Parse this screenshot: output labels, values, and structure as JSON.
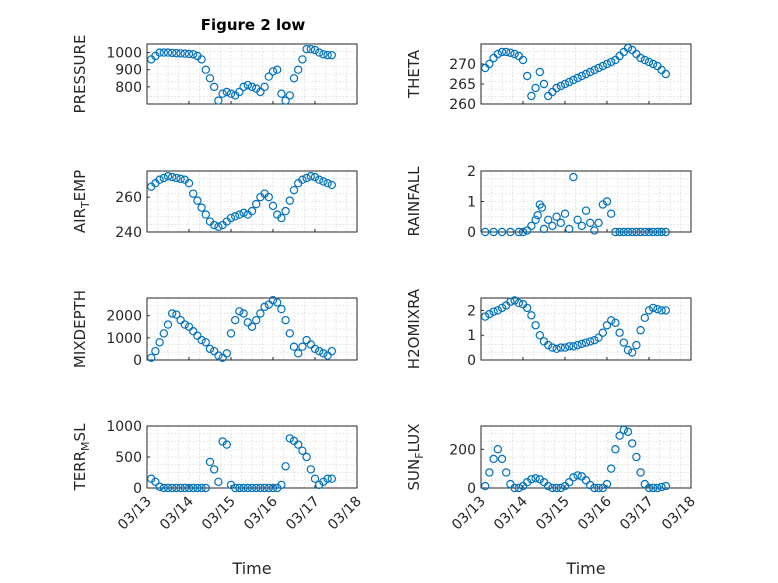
{
  "title": "Figure 2 low",
  "colors": {
    "marker": "#0072bd",
    "axis": "#262626",
    "grid": "#d9d9d9"
  },
  "chart_data": [
    {
      "type": "scatter",
      "ylabel": "PRESSURE",
      "ylim": [
        700,
        1050
      ],
      "yticks": [
        800,
        900,
        1000
      ],
      "x": [
        0.1,
        0.2,
        0.3,
        0.4,
        0.5,
        0.6,
        0.7,
        0.8,
        0.9,
        1.0,
        1.1,
        1.2,
        1.3,
        1.4,
        1.5,
        1.6,
        1.7,
        1.8,
        1.9,
        2.0,
        2.1,
        2.2,
        2.3,
        2.4,
        2.5,
        2.6,
        2.7,
        2.8,
        2.9,
        3.0,
        3.1,
        3.2,
        3.3,
        3.4,
        3.5,
        3.6,
        3.7,
        3.8,
        3.9,
        4.0,
        4.1,
        4.2,
        4.3,
        4.4
      ],
      "y": [
        960,
        980,
        1000,
        1000,
        1000,
        998,
        996,
        995,
        994,
        992,
        990,
        980,
        960,
        900,
        850,
        800,
        720,
        760,
        770,
        760,
        750,
        770,
        800,
        810,
        800,
        790,
        770,
        800,
        860,
        890,
        900,
        760,
        720,
        750,
        850,
        900,
        960,
        1020,
        1020,
        1015,
        1000,
        990,
        985,
        985
      ]
    },
    {
      "type": "scatter",
      "ylabel": "THETA",
      "ylim": [
        260,
        275
      ],
      "yticks": [
        260,
        265,
        270
      ],
      "x": [
        0.1,
        0.2,
        0.3,
        0.4,
        0.5,
        0.6,
        0.7,
        0.8,
        0.9,
        1.0,
        1.1,
        1.2,
        1.3,
        1.4,
        1.5,
        1.6,
        1.7,
        1.8,
        1.9,
        2.0,
        2.1,
        2.2,
        2.3,
        2.4,
        2.5,
        2.6,
        2.7,
        2.8,
        2.9,
        3.0,
        3.1,
        3.2,
        3.3,
        3.4,
        3.5,
        3.6,
        3.7,
        3.8,
        3.9,
        4.0,
        4.1,
        4.2,
        4.3,
        4.4
      ],
      "y": [
        269,
        270,
        271.5,
        272.5,
        273,
        273,
        272.8,
        272.5,
        272,
        271,
        267,
        262,
        264,
        268,
        265,
        262,
        263,
        264,
        264.5,
        265,
        265.5,
        266,
        266.5,
        267,
        267.5,
        268,
        268.5,
        269,
        269.5,
        270,
        270.5,
        271,
        272,
        273,
        274,
        273.5,
        272.5,
        271.5,
        271,
        270.5,
        270,
        269.5,
        268.5,
        267.5
      ]
    },
    {
      "type": "scatter",
      "ylabel": "AIR_TEMP",
      "ylim": [
        240,
        275
      ],
      "yticks": [
        240,
        260
      ],
      "x": [
        0.1,
        0.2,
        0.3,
        0.4,
        0.5,
        0.6,
        0.7,
        0.8,
        0.9,
        1.0,
        1.1,
        1.2,
        1.3,
        1.4,
        1.5,
        1.6,
        1.7,
        1.8,
        1.9,
        2.0,
        2.1,
        2.2,
        2.3,
        2.4,
        2.5,
        2.6,
        2.7,
        2.8,
        2.9,
        3.0,
        3.1,
        3.2,
        3.3,
        3.4,
        3.5,
        3.6,
        3.7,
        3.8,
        3.9,
        4.0,
        4.1,
        4.2,
        4.3,
        4.4
      ],
      "y": [
        266,
        268,
        270,
        271,
        272,
        271.5,
        271,
        270.5,
        270,
        268,
        262,
        258,
        254,
        250,
        246,
        244,
        243,
        244,
        246,
        248,
        249,
        250,
        251,
        250,
        252,
        256,
        260,
        262,
        260,
        255,
        250,
        248,
        252,
        258,
        264,
        268,
        270,
        271,
        272,
        271.5,
        270,
        269,
        268,
        267
      ]
    },
    {
      "type": "scatter",
      "ylabel": "RAINFALL",
      "ylim": [
        0,
        2
      ],
      "yticks": [
        0,
        1,
        2
      ],
      "x": [
        0.1,
        0.3,
        0.5,
        0.7,
        0.9,
        1.0,
        1.1,
        1.2,
        1.3,
        1.35,
        1.4,
        1.45,
        1.5,
        1.6,
        1.7,
        1.8,
        1.9,
        2.0,
        2.1,
        2.2,
        2.3,
        2.4,
        2.5,
        2.6,
        2.7,
        2.8,
        2.9,
        3.0,
        3.1,
        3.2,
        3.3,
        3.4,
        3.5,
        3.6,
        3.7,
        3.8,
        3.9,
        4.0,
        4.1,
        4.2,
        4.3,
        4.4
      ],
      "y": [
        0,
        0,
        0,
        0,
        0,
        0,
        0.05,
        0.2,
        0.4,
        0.55,
        0.9,
        0.8,
        0.1,
        0.4,
        0.2,
        0.5,
        0.3,
        0.6,
        0.1,
        1.8,
        0.4,
        0.2,
        0.7,
        0.3,
        0.05,
        0.3,
        0.9,
        1.0,
        0.6,
        0,
        0,
        0,
        0,
        0,
        0,
        0,
        0,
        0,
        0,
        0,
        0,
        0
      ]
    },
    {
      "type": "scatter",
      "ylabel": "MIXDEPTH",
      "ylim": [
        0,
        2800
      ],
      "yticks": [
        0,
        1000,
        2000
      ],
      "x": [
        0.1,
        0.2,
        0.3,
        0.4,
        0.5,
        0.6,
        0.7,
        0.8,
        0.9,
        1.0,
        1.1,
        1.2,
        1.3,
        1.4,
        1.5,
        1.6,
        1.7,
        1.8,
        1.9,
        2.0,
        2.1,
        2.2,
        2.3,
        2.4,
        2.5,
        2.6,
        2.7,
        2.8,
        2.9,
        3.0,
        3.1,
        3.2,
        3.3,
        3.4,
        3.5,
        3.6,
        3.7,
        3.8,
        3.9,
        4.0,
        4.1,
        4.2,
        4.3,
        4.4
      ],
      "y": [
        100,
        400,
        800,
        1200,
        1600,
        2100,
        2050,
        1800,
        1600,
        1500,
        1300,
        1100,
        900,
        800,
        500,
        400,
        200,
        100,
        300,
        1200,
        1800,
        2200,
        2100,
        1700,
        1500,
        1800,
        2100,
        2400,
        2500,
        2700,
        2600,
        2300,
        1800,
        1200,
        600,
        300,
        600,
        900,
        700,
        500,
        400,
        300,
        200,
        400
      ]
    },
    {
      "type": "scatter",
      "ylabel": "H2OMIXRA",
      "ylim": [
        0,
        2.5
      ],
      "yticks": [
        0,
        1,
        2
      ],
      "x": [
        0.1,
        0.2,
        0.3,
        0.4,
        0.5,
        0.6,
        0.7,
        0.8,
        0.9,
        1.0,
        1.1,
        1.2,
        1.3,
        1.4,
        1.5,
        1.6,
        1.7,
        1.8,
        1.9,
        2.0,
        2.1,
        2.2,
        2.3,
        2.4,
        2.5,
        2.6,
        2.7,
        2.8,
        2.9,
        3.0,
        3.1,
        3.2,
        3.3,
        3.4,
        3.5,
        3.6,
        3.7,
        3.8,
        3.9,
        4.0,
        4.1,
        4.2,
        4.3,
        4.4
      ],
      "y": [
        1.75,
        1.85,
        1.95,
        2.0,
        2.1,
        2.2,
        2.35,
        2.4,
        2.3,
        2.25,
        2.1,
        1.8,
        1.4,
        1.0,
        0.75,
        0.6,
        0.5,
        0.45,
        0.5,
        0.5,
        0.55,
        0.55,
        0.6,
        0.65,
        0.7,
        0.75,
        0.8,
        0.9,
        1.1,
        1.4,
        1.6,
        1.5,
        1.1,
        0.7,
        0.4,
        0.3,
        0.6,
        1.2,
        1.7,
        2.0,
        2.1,
        2.05,
        2.0,
        2.0
      ]
    },
    {
      "type": "scatter",
      "ylabel": "TERR_MSL",
      "ylim": [
        0,
        1000
      ],
      "yticks": [
        0,
        500,
        1000
      ],
      "x": [
        0.1,
        0.2,
        0.3,
        0.4,
        0.5,
        0.6,
        0.7,
        0.8,
        0.9,
        1.0,
        1.1,
        1.2,
        1.3,
        1.4,
        1.5,
        1.6,
        1.7,
        1.8,
        1.9,
        2.0,
        2.1,
        2.2,
        2.3,
        2.4,
        2.5,
        2.6,
        2.7,
        2.8,
        2.9,
        3.0,
        3.1,
        3.2,
        3.3,
        3.4,
        3.5,
        3.6,
        3.7,
        3.8,
        3.9,
        4.0,
        4.1,
        4.2,
        4.3,
        4.4
      ],
      "y": [
        150,
        100,
        20,
        0,
        0,
        0,
        0,
        0,
        0,
        0,
        0,
        0,
        0,
        0,
        420,
        300,
        100,
        750,
        700,
        50,
        0,
        0,
        0,
        0,
        0,
        0,
        0,
        0,
        0,
        0,
        0,
        50,
        350,
        800,
        760,
        700,
        600,
        500,
        300,
        150,
        50,
        100,
        150,
        150
      ]
    },
    {
      "type": "scatter",
      "ylabel": "SUN_FLUX",
      "ylim": [
        0,
        320
      ],
      "yticks": [
        0,
        200
      ],
      "x": [
        0.1,
        0.2,
        0.3,
        0.4,
        0.5,
        0.6,
        0.7,
        0.8,
        0.9,
        1.0,
        1.1,
        1.2,
        1.3,
        1.4,
        1.5,
        1.6,
        1.7,
        1.8,
        1.9,
        2.0,
        2.1,
        2.2,
        2.3,
        2.4,
        2.5,
        2.6,
        2.7,
        2.8,
        2.9,
        3.0,
        3.1,
        3.2,
        3.3,
        3.4,
        3.5,
        3.6,
        3.7,
        3.8,
        3.9,
        4.0,
        4.1,
        4.2,
        4.3,
        4.4
      ],
      "y": [
        10,
        80,
        150,
        200,
        150,
        80,
        20,
        0,
        0,
        10,
        30,
        45,
        50,
        45,
        30,
        10,
        0,
        0,
        0,
        10,
        30,
        55,
        65,
        60,
        40,
        15,
        0,
        0,
        0,
        20,
        100,
        200,
        270,
        300,
        290,
        230,
        160,
        80,
        20,
        0,
        0,
        0,
        5,
        10
      ]
    }
  ],
  "xaxis": {
    "label": "Time",
    "ticks": [
      "03/13",
      "03/14",
      "03/15",
      "03/16",
      "03/17",
      "03/18"
    ]
  }
}
